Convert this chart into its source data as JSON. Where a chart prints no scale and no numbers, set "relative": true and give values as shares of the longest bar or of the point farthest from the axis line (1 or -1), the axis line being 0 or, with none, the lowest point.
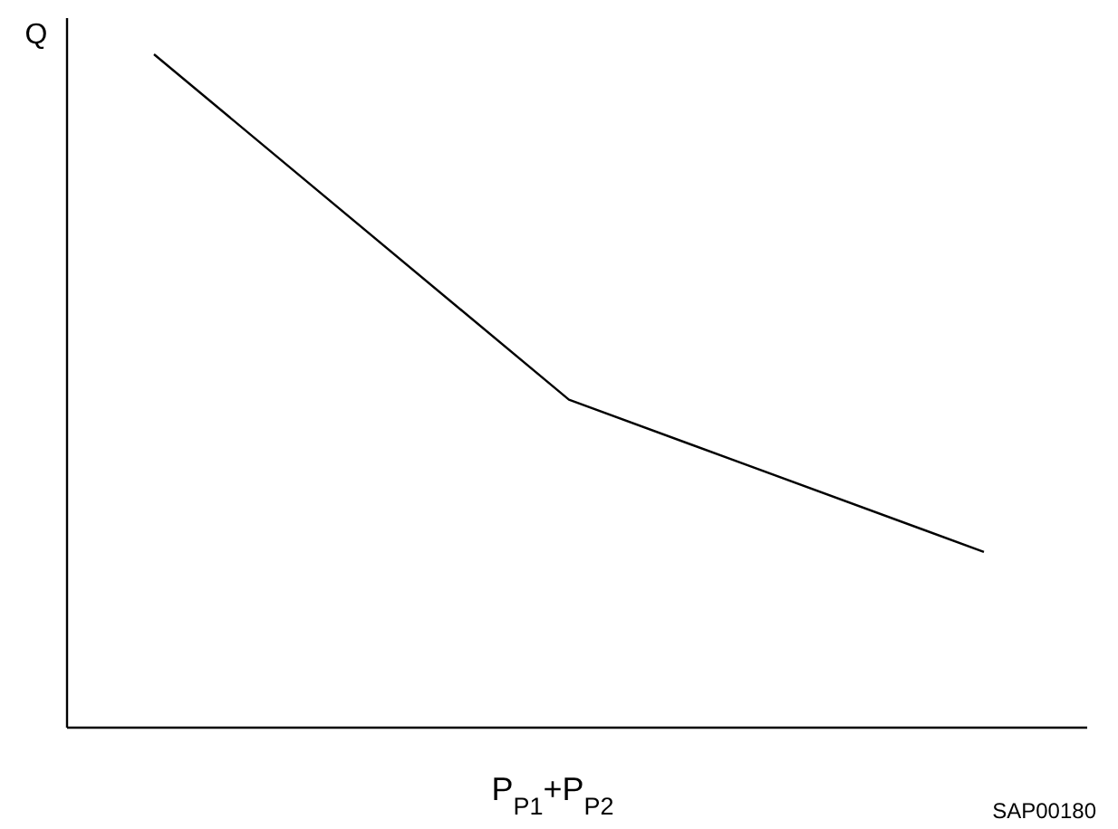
{
  "chart_data": {
    "type": "line",
    "relative": true,
    "ylabel": "Q",
    "xlabel": "P$_{P1}$+P$_{P2}$",
    "categories": [
      null,
      null,
      null
    ],
    "series": [
      {
        "color": "#000000",
        "values": [
          1,
          0.487,
          0.261
        ]
      }
    ],
    "marker": "none",
    "line_style": "solid",
    "annotations": [
      "SAP00180"
    ]
  }
}
